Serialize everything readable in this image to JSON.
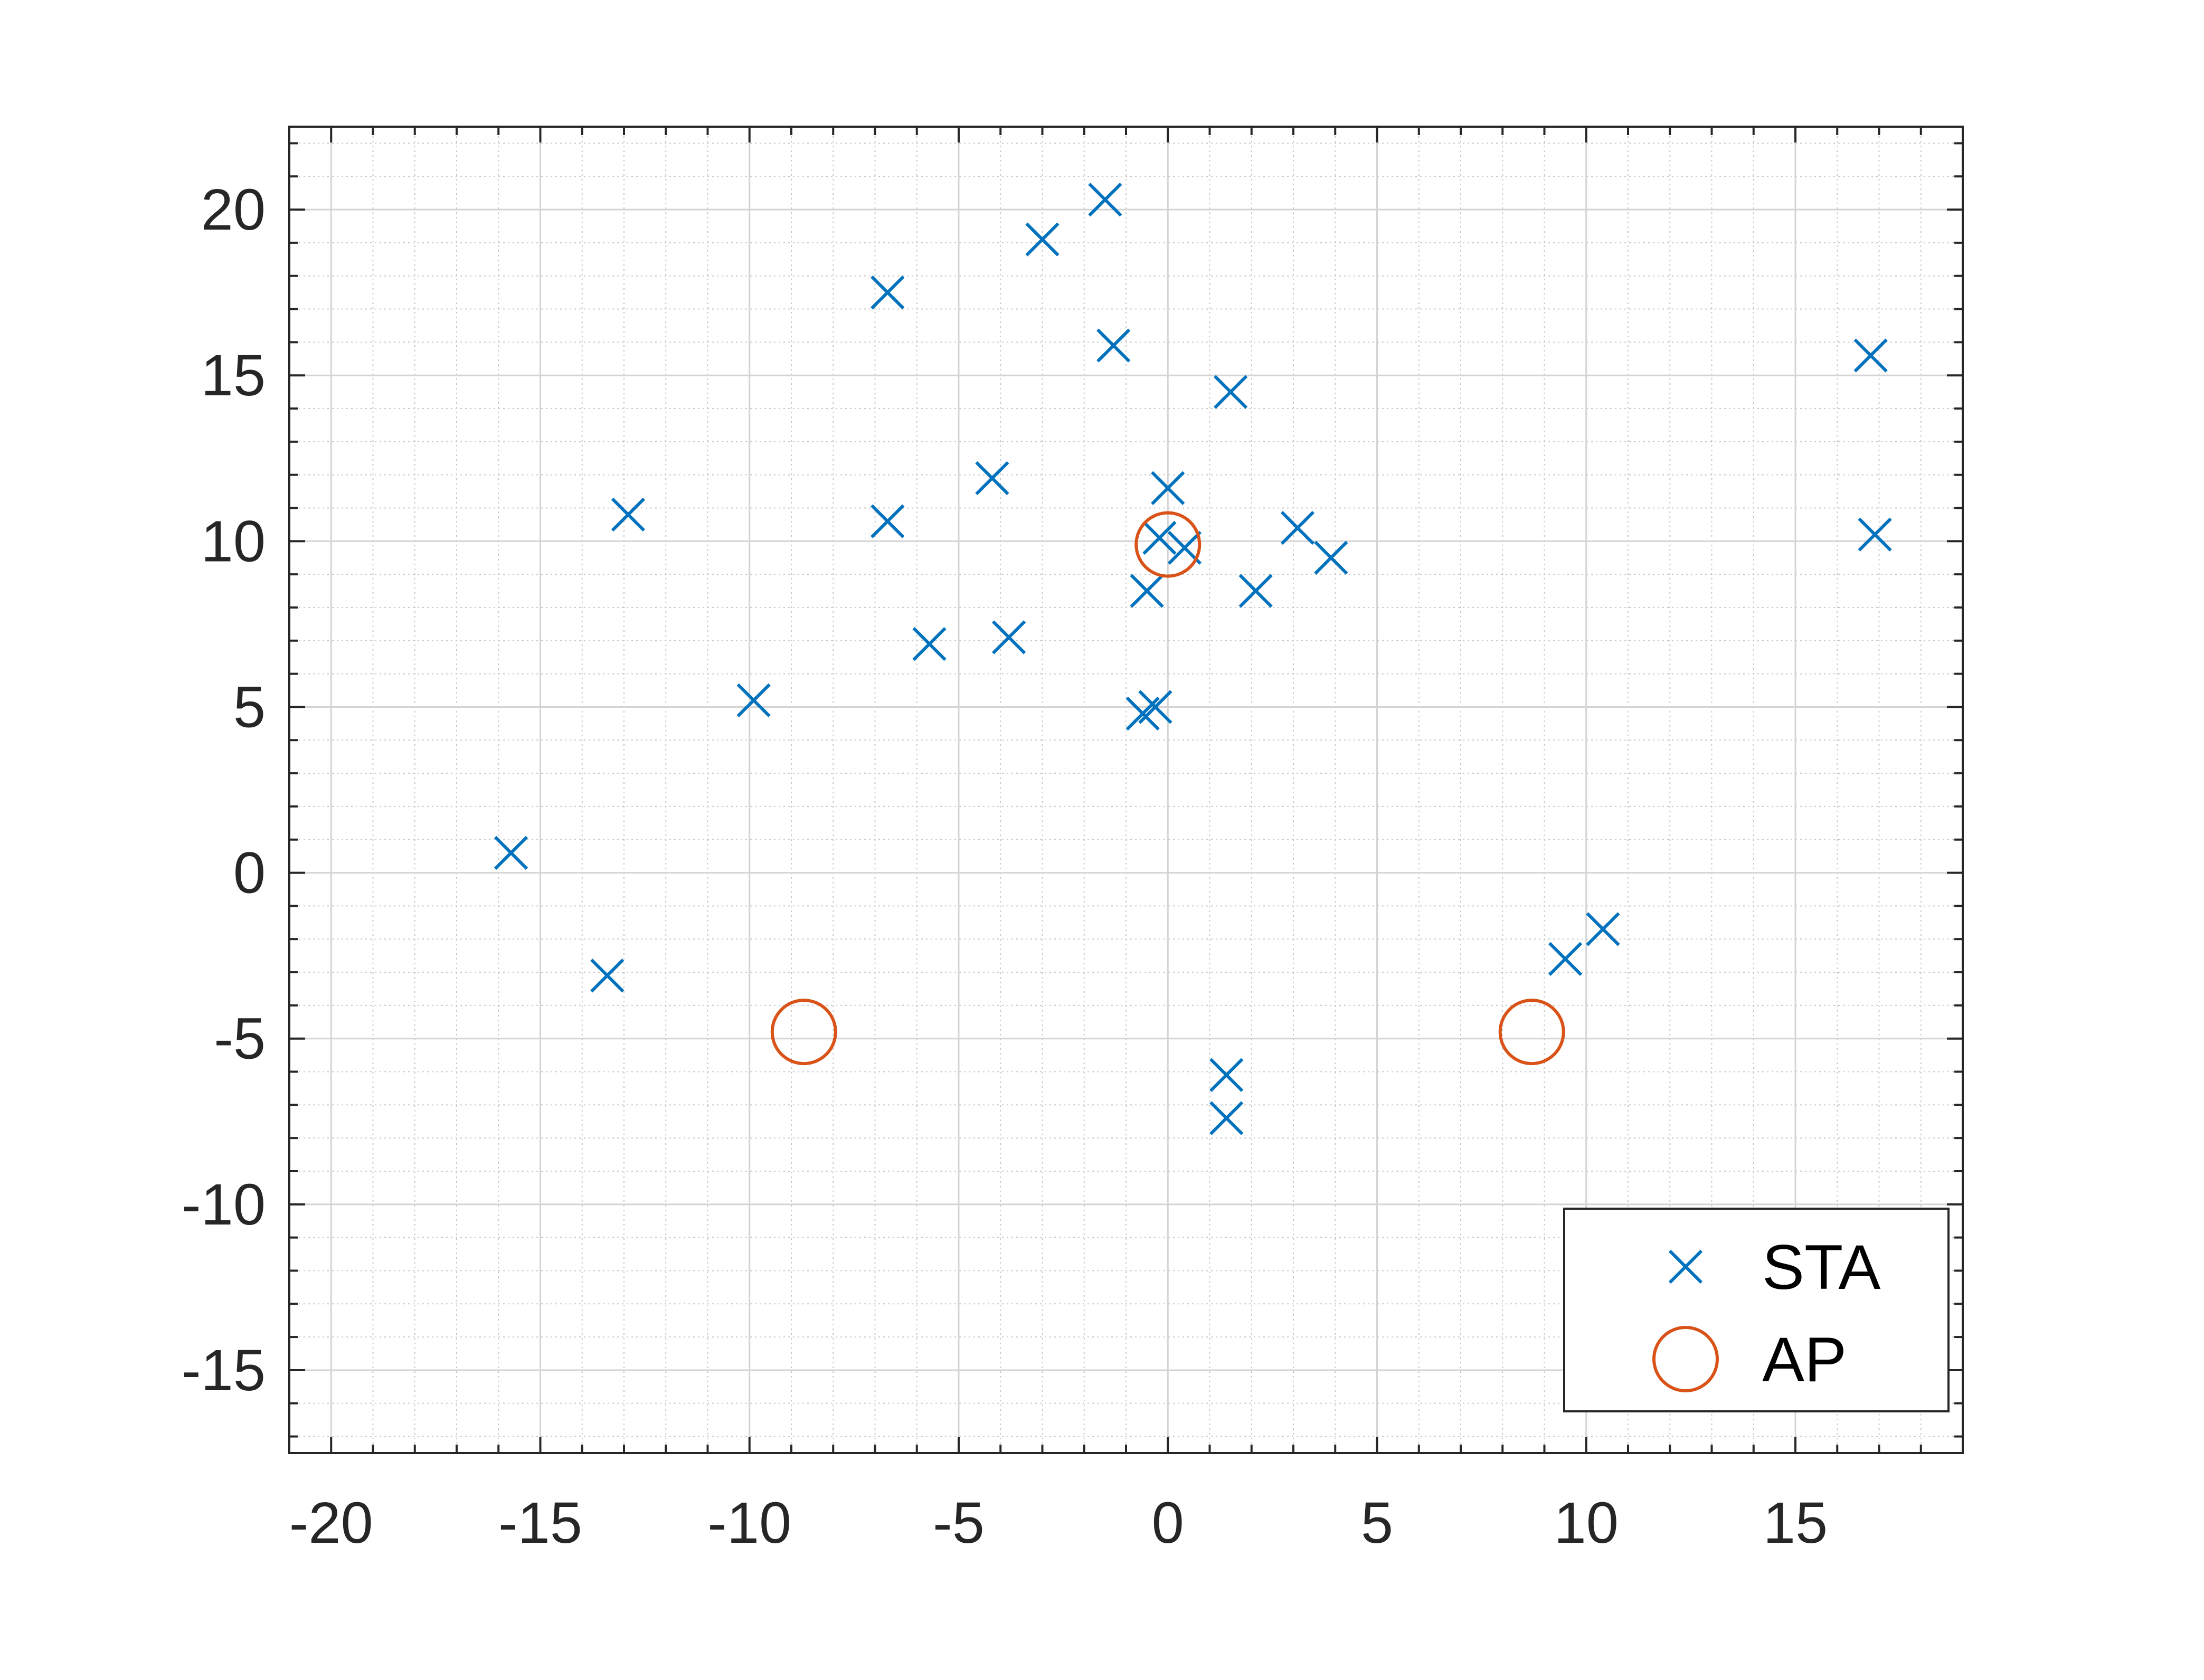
{
  "chart_data": {
    "type": "scatter",
    "title": "",
    "xlabel": "",
    "ylabel": "",
    "xlim": [
      -21,
      19
    ],
    "ylim": [
      -17.5,
      22.5
    ],
    "xticks": [
      -20,
      -15,
      -10,
      -5,
      0,
      5,
      10,
      15
    ],
    "yticks": [
      -15,
      -10,
      -5,
      0,
      5,
      10,
      15,
      20
    ],
    "xtick_labels": [
      "-20",
      "-15",
      "-10",
      "-5",
      "0",
      "5",
      "10",
      "15"
    ],
    "ytick_labels": [
      "-15",
      "-10",
      "-5",
      "0",
      "5",
      "10",
      "15",
      "20"
    ],
    "grid": true,
    "minor_grid": true,
    "legend_position": "bottom-right",
    "series": [
      {
        "name": "STA",
        "marker": "x",
        "color": "#0072BD",
        "points": [
          [
            -15.7,
            0.6
          ],
          [
            -13.4,
            -3.1
          ],
          [
            -12.9,
            10.8
          ],
          [
            -9.9,
            5.2
          ],
          [
            -6.7,
            17.5
          ],
          [
            -6.7,
            10.6
          ],
          [
            -5.7,
            6.9
          ],
          [
            -4.2,
            11.9
          ],
          [
            -3.8,
            7.1
          ],
          [
            -3.0,
            19.1
          ],
          [
            -1.5,
            20.3
          ],
          [
            -1.3,
            15.9
          ],
          [
            -0.6,
            4.8
          ],
          [
            -0.5,
            8.5
          ],
          [
            -0.3,
            5.0
          ],
          [
            -0.2,
            10.1
          ],
          [
            0.0,
            11.6
          ],
          [
            0.4,
            9.8
          ],
          [
            1.4,
            -6.1
          ],
          [
            1.4,
            -7.4
          ],
          [
            1.5,
            14.5
          ],
          [
            2.1,
            8.5
          ],
          [
            3.1,
            10.4
          ],
          [
            3.9,
            9.5
          ],
          [
            9.5,
            -2.6
          ],
          [
            10.4,
            -1.7
          ],
          [
            16.8,
            15.6
          ],
          [
            16.9,
            10.2
          ]
        ]
      },
      {
        "name": "AP",
        "marker": "circle",
        "color": "#D95319",
        "points": [
          [
            0.0,
            9.9
          ],
          [
            -8.7,
            -4.8
          ],
          [
            8.7,
            -4.8
          ]
        ]
      }
    ]
  }
}
